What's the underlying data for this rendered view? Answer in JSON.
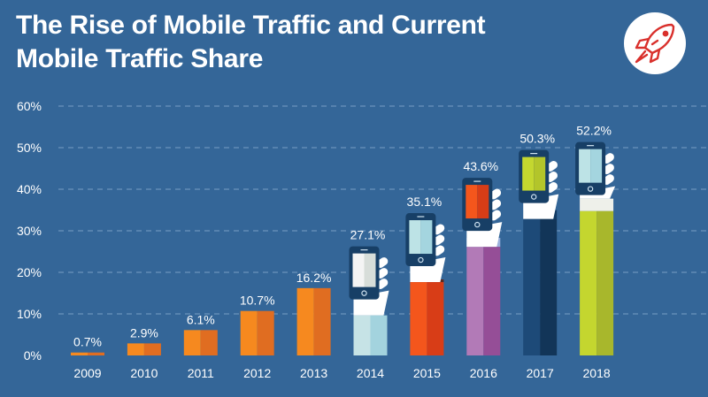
{
  "title_lines": [
    "The Rise of Mobile Traffic and Current",
    "Mobile Traffic Share"
  ],
  "logo_icon": "rocket-icon",
  "colors": {
    "background": "#346698",
    "grid": "#8fb0d2",
    "logo_red": "#d9302c",
    "orange_light": "#f6891f",
    "orange_dark": "#e06d21"
  },
  "chart_data": {
    "type": "bar",
    "title": "The Rise of Mobile Traffic and Current Mobile Traffic Share",
    "xlabel": "",
    "ylabel": "",
    "categories": [
      "2009",
      "2010",
      "2011",
      "2012",
      "2013",
      "2014",
      "2015",
      "2016",
      "2017",
      "2018"
    ],
    "values": [
      0.7,
      2.9,
      6.1,
      10.7,
      16.2,
      27.1,
      35.1,
      43.6,
      50.3,
      52.2
    ],
    "value_labels": [
      "0.7%",
      "2.9%",
      "6.1%",
      "10.7%",
      "16.2%",
      "27.1%",
      "35.1%",
      "43.6%",
      "50.3%",
      "52.2%"
    ],
    "ylim": [
      0,
      60
    ],
    "yticks": [
      0,
      10,
      20,
      30,
      40,
      50,
      60
    ],
    "ytick_labels": [
      "0%",
      "10%",
      "20%",
      "30%",
      "40%",
      "50%",
      "60%"
    ],
    "grid": true,
    "legend": "none",
    "styles": [
      {
        "kind": "bar",
        "light": "#f6891f",
        "dark": "#e06d21"
      },
      {
        "kind": "bar",
        "light": "#f6891f",
        "dark": "#e06d21"
      },
      {
        "kind": "bar",
        "light": "#f6891f",
        "dark": "#e06d21"
      },
      {
        "kind": "bar",
        "light": "#f6891f",
        "dark": "#e06d21"
      },
      {
        "kind": "bar",
        "light": "#f6891f",
        "dark": "#e06d21"
      },
      {
        "kind": "arm",
        "light": "#c6e3e6",
        "dark": "#a3d3de",
        "screen": "#f4f4f4",
        "screen2": "#d7ddd9",
        "cuff": "none"
      },
      {
        "kind": "arm",
        "light": "#f4561c",
        "dark": "#d83d17",
        "screen": "#bde3e6",
        "screen2": "#a4d5df",
        "cuff": "#5a2a20"
      },
      {
        "kind": "arm",
        "light": "#b27ab7",
        "dark": "#954e97",
        "screen": "#f4561c",
        "screen2": "#d83d17",
        "cuff": "#9bb0dc"
      },
      {
        "kind": "arm",
        "light": "#1d4a78",
        "dark": "#123558",
        "screen": "#c4d72f",
        "screen2": "#b3c52a",
        "cuff": "#123a62"
      },
      {
        "kind": "arm",
        "light": "#c4d62f",
        "dark": "#a8b72c",
        "screen": "#bde3e6",
        "screen2": "#a4d5df",
        "cuff": "#eef0ea"
      }
    ]
  }
}
